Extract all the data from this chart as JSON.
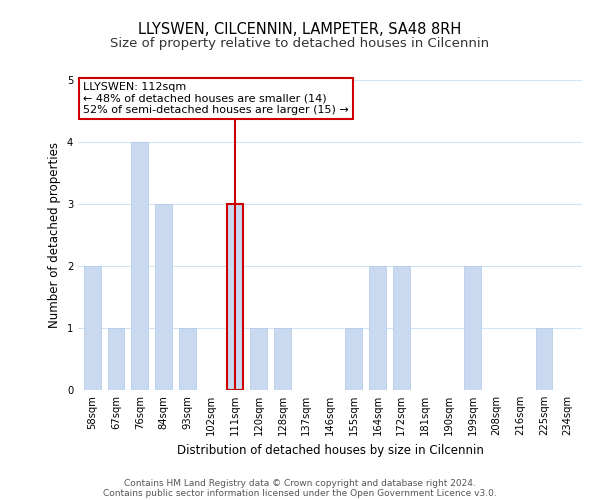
{
  "title": "LLYSWEN, CILCENNIN, LAMPETER, SA48 8RH",
  "subtitle": "Size of property relative to detached houses in Cilcennin",
  "xlabel": "Distribution of detached houses by size in Cilcennin",
  "ylabel": "Number of detached properties",
  "categories": [
    "58sqm",
    "67sqm",
    "76sqm",
    "84sqm",
    "93sqm",
    "102sqm",
    "111sqm",
    "120sqm",
    "128sqm",
    "137sqm",
    "146sqm",
    "155sqm",
    "164sqm",
    "172sqm",
    "181sqm",
    "190sqm",
    "199sqm",
    "208sqm",
    "216sqm",
    "225sqm",
    "234sqm"
  ],
  "values": [
    2,
    1,
    4,
    3,
    1,
    0,
    3,
    1,
    1,
    0,
    0,
    1,
    2,
    2,
    0,
    0,
    2,
    0,
    0,
    1,
    0
  ],
  "bar_color": "#c8d9f0",
  "highlight_index": 6,
  "highlight_line_color": "#cc0000",
  "annotation_line1": "LLYSWEN: 112sqm",
  "annotation_line2": "← 48% of detached houses are smaller (14)",
  "annotation_line3": "52% of semi-detached houses are larger (15) →",
  "annotation_box_color": "#ffffff",
  "annotation_box_edgecolor": "#cc0000",
  "ylim": [
    0,
    5
  ],
  "yticks": [
    0,
    1,
    2,
    3,
    4,
    5
  ],
  "footer_line1": "Contains HM Land Registry data © Crown copyright and database right 2024.",
  "footer_line2": "Contains public sector information licensed under the Open Government Licence v3.0.",
  "title_fontsize": 10.5,
  "subtitle_fontsize": 9.5,
  "tick_fontsize": 7.2,
  "ylabel_fontsize": 8.5,
  "xlabel_fontsize": 8.5,
  "annotation_fontsize": 8.0,
  "footer_fontsize": 6.5
}
